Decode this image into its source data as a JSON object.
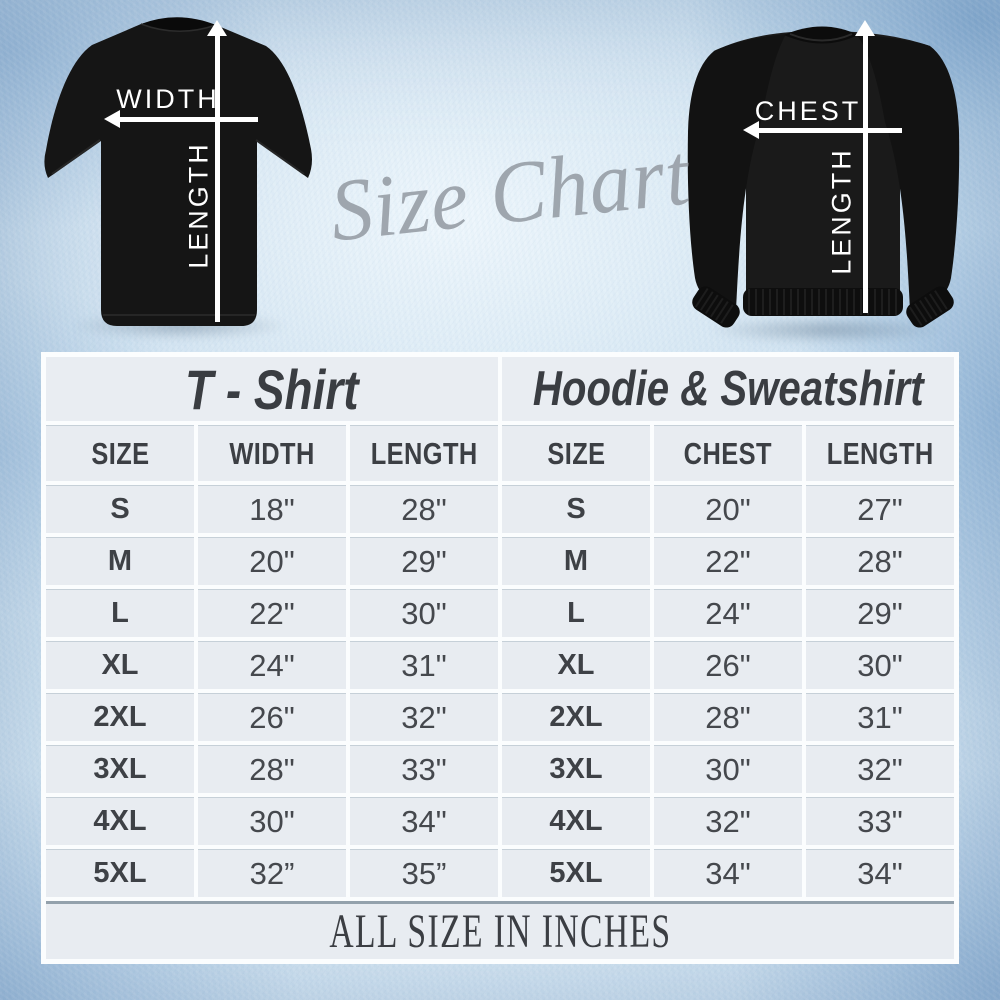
{
  "script_title": "Size Chart",
  "footer_note": "ALL SIZE IN INCHES",
  "diagram": {
    "tshirt": {
      "horizontal_label": "WIDTH",
      "vertical_label": "LENGTH"
    },
    "hoodie": {
      "horizontal_label": "CHEST",
      "vertical_label": "LENGTH"
    }
  },
  "chart_data": [
    {
      "type": "table",
      "title": "T - Shirt",
      "columns": [
        "SIZE",
        "WIDTH",
        "LENGTH"
      ],
      "rows": [
        [
          "S",
          "18\"",
          "28\""
        ],
        [
          "M",
          "20\"",
          "29\""
        ],
        [
          "L",
          "22\"",
          "30\""
        ],
        [
          "XL",
          "24\"",
          "31\""
        ],
        [
          "2XL",
          "26\"",
          "32\""
        ],
        [
          "3XL",
          "28\"",
          "33\""
        ],
        [
          "4XL",
          "30\"",
          "34\""
        ],
        [
          "5XL",
          "32”",
          "35”"
        ]
      ],
      "note": "ALL SIZE IN INCHES"
    },
    {
      "type": "table",
      "title": "Hoodie & Sweatshirt",
      "columns": [
        "SIZE",
        "CHEST",
        "LENGTH"
      ],
      "rows": [
        [
          "S",
          "20\"",
          "27\""
        ],
        [
          "M",
          "22\"",
          "28\""
        ],
        [
          "L",
          "24\"",
          "29\""
        ],
        [
          "XL",
          "26\"",
          "30\""
        ],
        [
          "2XL",
          "28\"",
          "31\""
        ],
        [
          "3XL",
          "30\"",
          "32\""
        ],
        [
          "4XL",
          "32\"",
          "33\""
        ],
        [
          "5XL",
          "34\"",
          "34\""
        ]
      ],
      "note": "ALL SIZE IN INCHES"
    }
  ],
  "colors": {
    "background_blue": "#cfe0ee",
    "table_cell": "#e8ecf1",
    "table_gap": "#fbfdfe",
    "text_dark": "#3e4146",
    "script_gray": "#99a0a8",
    "arrow_white": "#ffffff",
    "garment_black": "#151515"
  }
}
